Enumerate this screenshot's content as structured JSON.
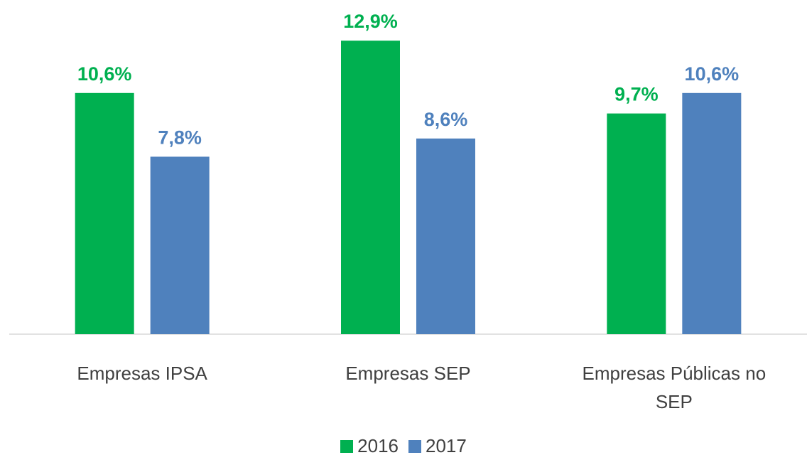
{
  "chart_data": {
    "type": "bar",
    "categories": [
      "Empresas IPSA",
      "Empresas SEP",
      "Empresas Públicas no SEP"
    ],
    "series": [
      {
        "name": "2016",
        "color": "#00b050",
        "values": [
          10.6,
          12.9,
          9.7
        ],
        "value_labels": [
          "10,6%",
          "12,9%",
          "9,7%"
        ]
      },
      {
        "name": "2017",
        "color": "#4f81bd",
        "values": [
          7.8,
          8.6,
          10.6
        ],
        "value_labels": [
          "7,8%",
          "8,6%",
          "10,6%"
        ]
      }
    ],
    "ylim": [
      0,
      14
    ],
    "grid": false,
    "legend": "bottom"
  }
}
